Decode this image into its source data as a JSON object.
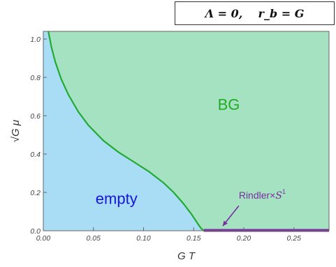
{
  "header": {
    "parameter_box": "Λ = 0,    r_b = G"
  },
  "chart_data": {
    "type": "area",
    "xlabel": "G T",
    "ylabel": "√G μ",
    "xlim": [
      0,
      0.285
    ],
    "ylim": [
      0,
      1.04
    ],
    "x_ticks": [
      "0.00",
      "0.05",
      "0.10",
      "0.15",
      "0.20",
      "0.25"
    ],
    "y_ticks": [
      "0.0",
      "0.2",
      "0.4",
      "0.6",
      "0.8",
      "1.0"
    ],
    "x_tick_values": [
      0,
      0.05,
      0.1,
      0.15,
      0.2,
      0.25
    ],
    "y_tick_values": [
      0,
      0.2,
      0.4,
      0.6,
      0.8,
      1.0
    ],
    "boundary": {
      "x": [
        0.005,
        0.008,
        0.012,
        0.018,
        0.025,
        0.035,
        0.045,
        0.06,
        0.075,
        0.09,
        0.105,
        0.12,
        0.13,
        0.14,
        0.148,
        0.153,
        0.157,
        0.16
      ],
      "y": [
        1.04,
        0.96,
        0.88,
        0.79,
        0.71,
        0.62,
        0.55,
        0.47,
        0.41,
        0.36,
        0.31,
        0.25,
        0.2,
        0.14,
        0.085,
        0.045,
        0.015,
        0.0
      ],
      "color": "#22aa33"
    },
    "regions": [
      {
        "label": "BG",
        "color": "#a4e2c2",
        "label_color": "#22aa22"
      },
      {
        "label": "empty",
        "color": "#a9dcf5",
        "label_color": "#1515dd"
      }
    ],
    "rindler_phase": {
      "label": "Rindler×",
      "label_extra": "S",
      "superscript": "1",
      "x_range": [
        0.16,
        0.285
      ],
      "y": 0,
      "color": "#7a2fa0"
    }
  }
}
